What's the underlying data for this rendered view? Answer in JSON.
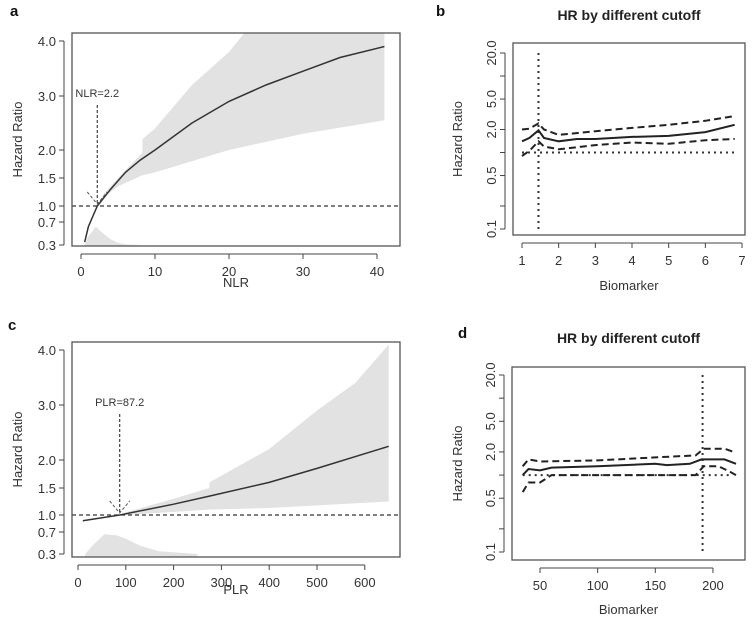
{
  "chart_data": [
    {
      "panel": "a",
      "type": "line",
      "xlabel": "NLR",
      "ylabel": "Hazard Ratio",
      "xlim": [
        0,
        42
      ],
      "xticks": [
        0,
        10,
        20,
        30,
        40
      ],
      "xtick_labels": [
        "0",
        "10",
        "20",
        "30",
        "40"
      ],
      "yticks": [
        4.0,
        3.0,
        2.0,
        1.5,
        1.0,
        0.7,
        0.3
      ],
      "ytick_labels": [
        "4.0",
        "3.0",
        "2.0",
        "1.5",
        "1.0",
        "0.7",
        "0.3"
      ],
      "reference_hr": 1.0,
      "cutoff": {
        "x": 2.2,
        "label": "NLR=2.2"
      },
      "hr": {
        "x": [
          0.5,
          1,
          2.2,
          4,
          6,
          8,
          10,
          15,
          20,
          25,
          30,
          35,
          41
        ],
        "y": [
          0.35,
          0.62,
          1.0,
          1.3,
          1.6,
          1.82,
          2.0,
          2.5,
          2.9,
          3.2,
          3.45,
          3.7,
          3.9
        ]
      },
      "ci_upper": {
        "x": [
          2.2,
          3,
          5,
          8.3,
          8.3,
          10,
          15,
          20,
          23,
          41
        ],
        "y": [
          1.0,
          1.2,
          1.5,
          1.95,
          2.2,
          2.4,
          3.2,
          3.8,
          4.3,
          4.3
        ]
      },
      "ci_lower": {
        "x": [
          2.2,
          3,
          5,
          8.3,
          10,
          20,
          30,
          41
        ],
        "y": [
          1.0,
          1.15,
          1.35,
          1.55,
          1.6,
          2.0,
          2.3,
          2.55
        ]
      },
      "density": {
        "x": [
          0.5,
          1,
          2,
          3,
          4,
          5,
          6,
          8
        ],
        "y": [
          0.3,
          0.45,
          0.62,
          0.5,
          0.4,
          0.34,
          0.31,
          0.3
        ]
      }
    },
    {
      "panel": "b",
      "type": "line",
      "title": "HR by different cutoff",
      "xlabel": "Biomarker",
      "ylabel": "Hazard Ratio",
      "xlim": [
        1,
        7
      ],
      "xticks": [
        1,
        2,
        3,
        4,
        5,
        6,
        7
      ],
      "xtick_labels": [
        "1",
        "2",
        "3",
        "4",
        "5",
        "6",
        "7"
      ],
      "ylim": [
        0.1,
        20
      ],
      "yscale": "log",
      "yticks": [
        0.1,
        0.2,
        0.5,
        1,
        2,
        5,
        10,
        20
      ],
      "ytick_labels": [
        "0.1",
        "",
        "0.5",
        "",
        "2.0",
        "5.0",
        "",
        "20.0"
      ],
      "reference_hr": 1.0,
      "cutoff": {
        "x": 1.45
      },
      "hr": {
        "x": [
          1,
          1.2,
          1.45,
          1.6,
          2,
          2.5,
          3,
          4,
          5,
          6,
          6.8
        ],
        "y": [
          1.4,
          1.55,
          1.95,
          1.55,
          1.4,
          1.5,
          1.5,
          1.6,
          1.65,
          1.85,
          2.3
        ]
      },
      "ci_upper": {
        "x": [
          1,
          1.2,
          1.45,
          1.6,
          2,
          3,
          4,
          5,
          6,
          6.8
        ],
        "y": [
          2.0,
          2.05,
          2.4,
          2.0,
          1.7,
          1.9,
          2.1,
          2.3,
          2.6,
          3.0
        ]
      },
      "ci_lower": {
        "x": [
          1,
          1.2,
          1.45,
          1.6,
          2,
          3,
          4,
          5,
          6,
          6.8
        ],
        "y": [
          0.9,
          1.05,
          1.4,
          1.2,
          1.1,
          1.25,
          1.35,
          1.3,
          1.45,
          1.5
        ]
      }
    },
    {
      "panel": "c",
      "type": "line",
      "xlabel": "PLR",
      "ylabel": "Hazard Ratio",
      "xlim": [
        0,
        660
      ],
      "xticks": [
        0,
        100,
        200,
        300,
        400,
        500,
        600
      ],
      "xtick_labels": [
        "0",
        "100",
        "200",
        "300",
        "400",
        "500",
        "600"
      ],
      "yticks": [
        4.0,
        3.0,
        2.0,
        1.5,
        1.0,
        0.7,
        0.3
      ],
      "ytick_labels": [
        "4.0",
        "3.0",
        "2.0",
        "1.5",
        "1.0",
        "0.7",
        "0.3"
      ],
      "reference_hr": 1.0,
      "cutoff": {
        "x": 87.2,
        "label": "PLR=87.2"
      },
      "hr": {
        "x": [
          10,
          87.2,
          200,
          275,
          400,
          500,
          650
        ],
        "y": [
          0.9,
          1.0,
          1.2,
          1.35,
          1.6,
          1.85,
          2.25
        ]
      },
      "ci_upper": {
        "x": [
          87.2,
          100,
          200,
          275,
          275,
          400,
          500,
          580,
          650
        ],
        "y": [
          1.0,
          1.05,
          1.3,
          1.5,
          1.6,
          2.2,
          2.9,
          3.4,
          4.1
        ]
      },
      "ci_lower": {
        "x": [
          87.2,
          100,
          275,
          400,
          650
        ],
        "y": [
          1.0,
          1.0,
          1.1,
          1.13,
          1.25
        ]
      },
      "density": {
        "x": [
          15,
          30,
          55,
          80,
          100,
          130,
          170,
          250
        ],
        "y": [
          0.3,
          0.45,
          0.66,
          0.64,
          0.58,
          0.45,
          0.35,
          0.3
        ]
      }
    },
    {
      "panel": "d",
      "type": "line",
      "title": "HR by different cutoff",
      "xlabel": "Biomarker",
      "ylabel": "Hazard Ratio",
      "xlim": [
        35,
        220
      ],
      "xticks": [
        50,
        100,
        150,
        200
      ],
      "xtick_labels": [
        "50",
        "100",
        "150",
        "200"
      ],
      "ylim": [
        0.1,
        20
      ],
      "yscale": "log",
      "yticks": [
        0.1,
        0.2,
        0.5,
        1,
        2,
        5,
        10,
        20
      ],
      "ytick_labels": [
        "0.1",
        "",
        "0.5",
        "",
        "2.0",
        "5.0",
        "",
        "20.0"
      ],
      "reference_hr": 1.0,
      "cutoff": {
        "x": 191
      },
      "hr": {
        "x": [
          35,
          40,
          50,
          60,
          100,
          150,
          160,
          180,
          190,
          210,
          220
        ],
        "y": [
          1.0,
          1.2,
          1.15,
          1.25,
          1.3,
          1.4,
          1.35,
          1.4,
          1.6,
          1.6,
          1.4
        ]
      },
      "ci_upper": {
        "x": [
          35,
          40,
          50,
          100,
          150,
          185,
          192,
          210,
          220
        ],
        "y": [
          1.3,
          1.6,
          1.5,
          1.55,
          1.7,
          1.8,
          2.2,
          2.2,
          1.95
        ]
      },
      "ci_lower": {
        "x": [
          35,
          40,
          50,
          60,
          100,
          150,
          185,
          192,
          205,
          215,
          220
        ],
        "y": [
          0.6,
          0.8,
          0.8,
          1.0,
          1.0,
          1.0,
          1.0,
          1.3,
          1.3,
          1.1,
          1.0
        ]
      }
    }
  ]
}
